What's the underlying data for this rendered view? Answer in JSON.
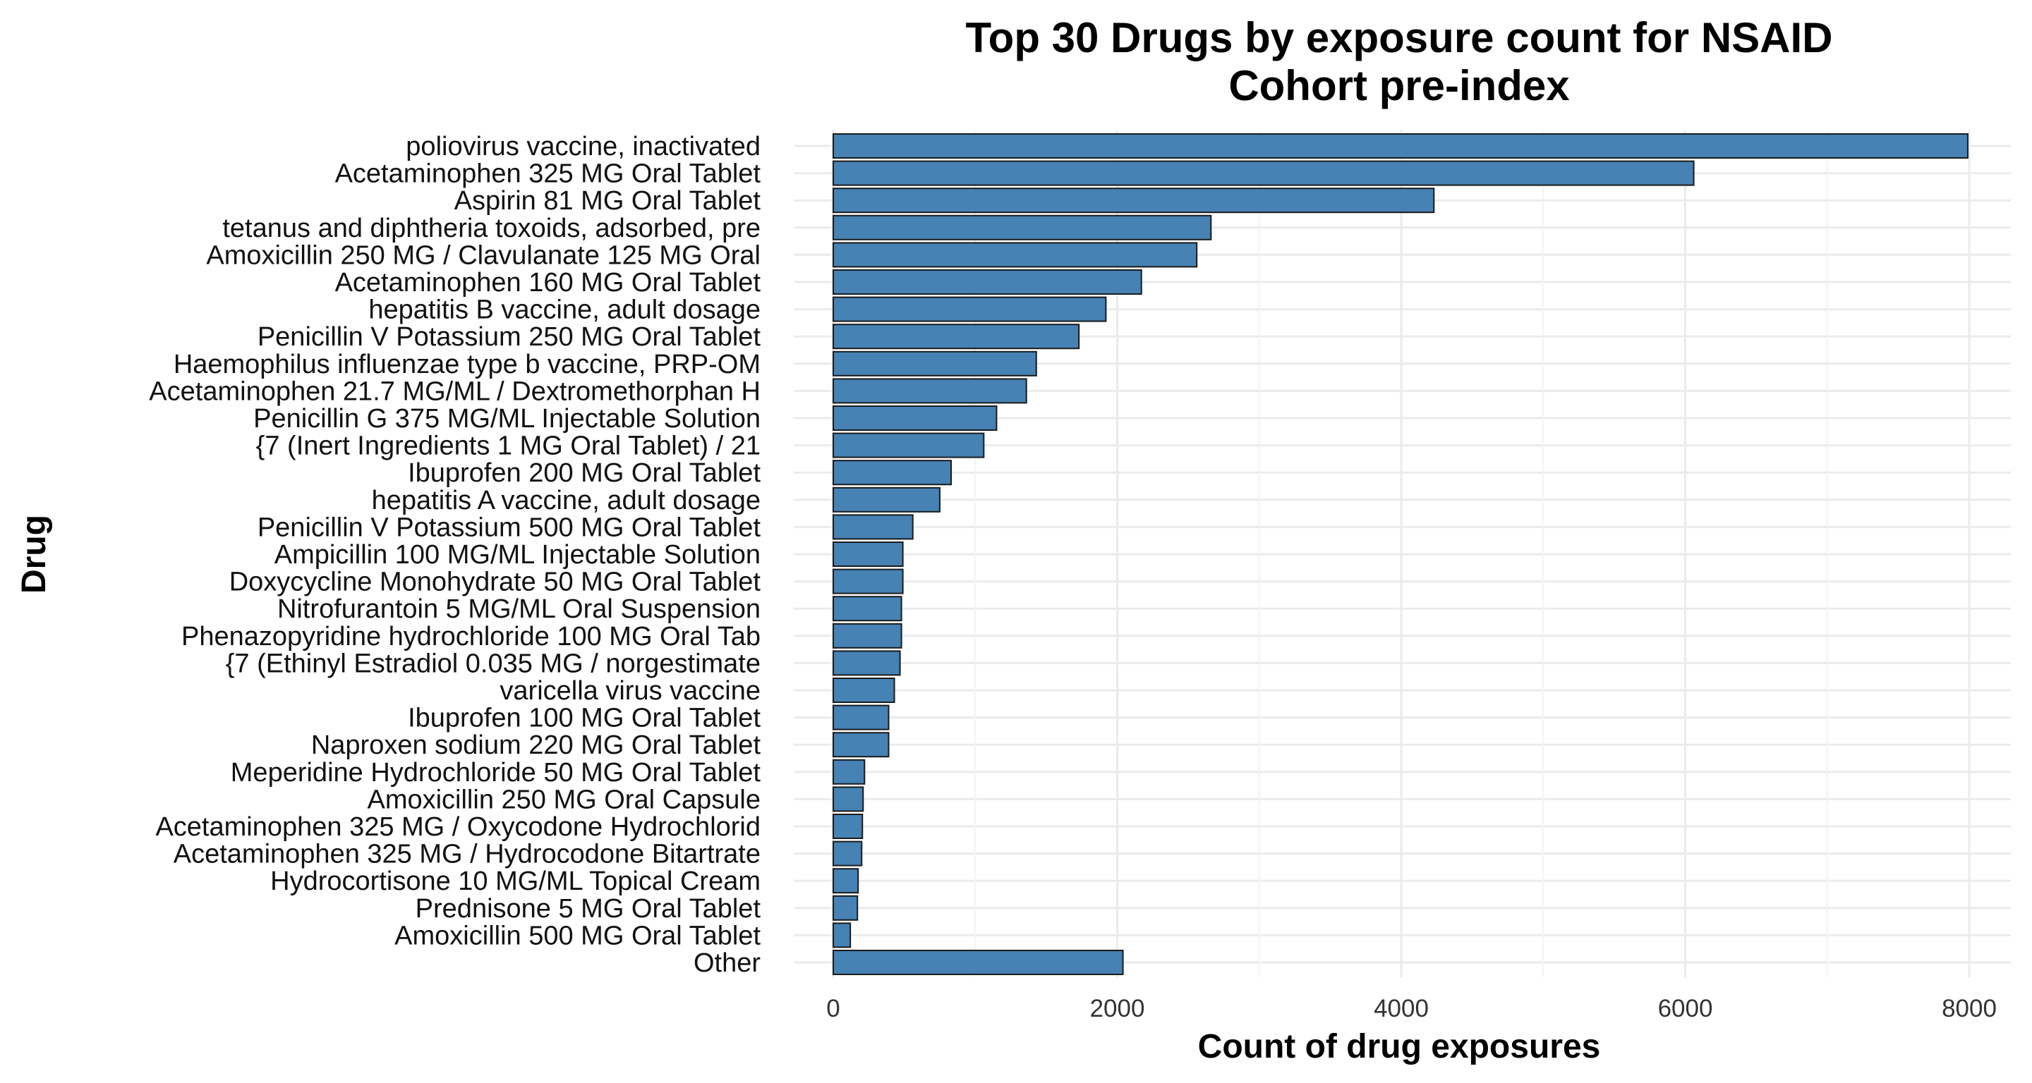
{
  "chart_data": {
    "type": "bar",
    "orientation": "horizontal",
    "title_lines": [
      "Top 30 Drugs by exposure count for NSAID",
      "Cohort pre-index"
    ],
    "xlabel": "Count of drug exposures",
    "ylabel": "Drug",
    "xlim": [
      0,
      8200
    ],
    "xticks": [
      0,
      2000,
      4000,
      6000,
      8000
    ],
    "xtick_labels": [
      "0",
      "2000",
      "4000",
      "6000",
      "8000"
    ],
    "grid": true,
    "bar_color": "#4682b4",
    "categories": [
      "poliovirus vaccine, inactivated",
      "Acetaminophen 325 MG Oral Tablet",
      "Aspirin 81 MG Oral Tablet",
      "tetanus and diphtheria toxoids, adsorbed, pre",
      "Amoxicillin 250 MG / Clavulanate 125 MG Oral",
      "Acetaminophen 160 MG Oral Tablet",
      "hepatitis B vaccine, adult dosage",
      "Penicillin V Potassium 250 MG Oral Tablet",
      "Haemophilus influenzae type b vaccine, PRP-OM",
      "Acetaminophen 21.7 MG/ML / Dextromethorphan H",
      "Penicillin G 375 MG/ML Injectable Solution",
      "{7 (Inert Ingredients 1 MG Oral Tablet) / 21",
      "Ibuprofen 200 MG Oral Tablet",
      "hepatitis A vaccine, adult dosage",
      "Penicillin V Potassium 500 MG Oral Tablet",
      "Ampicillin 100 MG/ML Injectable Solution",
      "Doxycycline Monohydrate 50 MG Oral Tablet",
      "Nitrofurantoin 5 MG/ML Oral Suspension",
      "Phenazopyridine hydrochloride 100 MG Oral Tab",
      "{7 (Ethinyl Estradiol 0.035 MG / norgestimate",
      "varicella virus vaccine",
      "Ibuprofen 100 MG Oral Tablet",
      "Naproxen sodium 220 MG Oral Tablet",
      "Meperidine Hydrochloride 50 MG Oral Tablet",
      "Amoxicillin 250 MG Oral Capsule",
      "Acetaminophen 325 MG / Oxycodone Hydrochlorid",
      "Acetaminophen 325 MG / Hydrocodone Bitartrate",
      "Hydrocortisone 10 MG/ML Topical Cream",
      "Prednisone 5 MG Oral Tablet",
      "Amoxicillin 500 MG Oral Tablet",
      "Other"
    ],
    "values": [
      7990,
      6060,
      4230,
      2660,
      2560,
      2170,
      1920,
      1730,
      1430,
      1360,
      1150,
      1060,
      830,
      750,
      560,
      490,
      490,
      480,
      480,
      470,
      430,
      390,
      390,
      220,
      210,
      205,
      200,
      175,
      170,
      120,
      2040
    ]
  }
}
